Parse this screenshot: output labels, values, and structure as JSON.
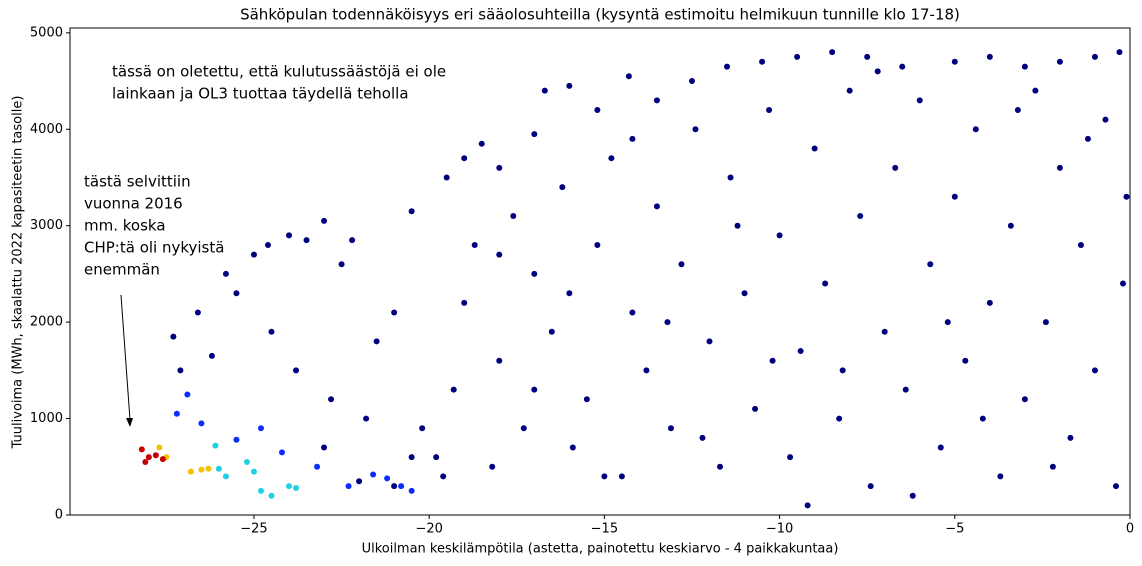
{
  "chart_data": {
    "type": "scatter",
    "title": "Sähköpulan todennäköisyys eri sääolosuhteilla (kysyntä estimoitu helmikuun tunnille klo 17-18)",
    "xlabel": "Ulkoilman keskilämpötila (astetta, painotettu keskiarvo - 4 paikkakuntaa)",
    "ylabel": "Tuulivoima (MWh, skaalattu 2022 kapasiteetin tasolle)",
    "annotations": [
      {
        "lines": [
          "tässä on oletettu, että kulutussäästöjä ei ole",
          "lainkaan ja OL3 tuottaa täydellä teholla"
        ]
      },
      {
        "lines": [
          "tästä selvittiin",
          "vuonna 2016",
          "mm. koska",
          "CHP:tä oli nykyistä",
          "enemmän"
        ]
      }
    ],
    "xlim": [
      -30.25,
      0
    ],
    "ylim": [
      0,
      5050
    ],
    "xticks": [
      {
        "value": -25,
        "label": "−25"
      },
      {
        "value": -20,
        "label": "−20"
      },
      {
        "value": -15,
        "label": "−15"
      },
      {
        "value": -10,
        "label": "−10"
      },
      {
        "value": -5,
        "label": "−5"
      },
      0
    ],
    "yticks": [
      0,
      1000,
      2000,
      3000,
      4000,
      5000
    ],
    "series": [
      {
        "color": "#00007f",
        "x": [
          -27.3,
          -27.1,
          -26.6,
          -26.2,
          -25.8,
          -25.5,
          -25.0,
          -24.6,
          -24.0,
          -23.5,
          -23.0,
          -22.5,
          -22.2,
          -21.0,
          -20.5,
          -24.5,
          -23.8,
          -22.8,
          -21.5,
          -20.2,
          -19.5,
          -19.0,
          -18.5,
          -18.0,
          -17.0,
          -16.7,
          -16.0,
          -15.2,
          -14.3,
          -13.5,
          -12.5,
          -11.5,
          -10.5,
          -9.5,
          -8.5,
          -7.5,
          -6.5,
          -5.0,
          -4.0,
          -3.0,
          -2.0,
          -1.0,
          -0.3,
          -19.8,
          -19.3,
          -19,
          -18.7,
          -18.2,
          -18,
          -17.6,
          -17.3,
          -17,
          -16.5,
          -16.2,
          -15.9,
          -15.5,
          -15.2,
          -14.8,
          -14.5,
          -14.2,
          -13.8,
          -13.5,
          -13.1,
          -12.8,
          -12.4,
          -12,
          -11.7,
          -11.4,
          -11,
          -10.7,
          -10.3,
          -10,
          -9.7,
          -9.4,
          -9,
          -8.7,
          -8.3,
          -8,
          -7.7,
          -7.4,
          -7,
          -6.7,
          -6.4,
          -6,
          -5.7,
          -5.4,
          -5,
          -4.7,
          -4.4,
          -4,
          -3.7,
          -3.4,
          -3,
          -2.7,
          -2.4,
          -2,
          -1.7,
          -1.4,
          -1,
          -0.7,
          -0.4,
          -0.2,
          -0.1,
          -1.2,
          -2.2,
          -3.2,
          -4.2,
          -5.2,
          -6.2,
          -7.2,
          -8.2,
          -9.2,
          -10.2,
          -11.2,
          -12.2,
          -13.2,
          -14.2,
          -15,
          -16,
          -17,
          -18,
          -19.6,
          -20.5,
          -21,
          -22,
          -21.8,
          -23
        ],
        "values": [
          1850,
          1500,
          2100,
          1650,
          2500,
          2300,
          2700,
          2800,
          2900,
          2850,
          3050,
          2600,
          2850,
          2100,
          3150,
          1900,
          1500,
          1200,
          1800,
          900,
          3500,
          3700,
          3850,
          3600,
          3950,
          4400,
          4450,
          4200,
          4550,
          4300,
          4500,
          4650,
          4700,
          4750,
          4800,
          4750,
          4650,
          4700,
          4750,
          4650,
          4700,
          4750,
          4800,
          600,
          1300,
          2200,
          2800,
          500,
          1600,
          3100,
          900,
          2500,
          1900,
          3400,
          700,
          1200,
          2800,
          3700,
          400,
          2100,
          1500,
          3200,
          900,
          2600,
          4000,
          1800,
          500,
          3500,
          2300,
          1100,
          4200,
          2900,
          600,
          1700,
          3800,
          2400,
          1000,
          4400,
          3100,
          300,
          1900,
          3600,
          1300,
          4300,
          2600,
          700,
          3300,
          1600,
          4000,
          2200,
          400,
          3000,
          1200,
          4400,
          2000,
          3600,
          800,
          2800,
          1500,
          4100,
          300,
          2400,
          3300,
          3900,
          500,
          4200,
          1000,
          2000,
          200,
          4600,
          1500,
          100,
          1600,
          3000,
          800,
          2000,
          3900,
          400,
          2300,
          1300,
          2700,
          400,
          600,
          300,
          350,
          1000,
          700
        ]
      },
      {
        "color": "#0a2cff",
        "x": [
          -21.2,
          -20.8,
          -21.6,
          -22.3,
          -20.5,
          -23.2,
          -24.8,
          -25.5,
          -26.5,
          -27.2,
          -26.9,
          -24.2
        ],
        "values": [
          380,
          300,
          420,
          300,
          250,
          500,
          900,
          780,
          950,
          1050,
          1250,
          650
        ]
      },
      {
        "color": "#20d0e0",
        "x": [
          -25.2,
          -24.0,
          -24.5,
          -25.0,
          -26.1,
          -25.8,
          -23.8,
          -26.0,
          -24.8
        ],
        "values": [
          550,
          300,
          200,
          450,
          720,
          400,
          280,
          480,
          250
        ]
      },
      {
        "color": "#f5c000",
        "x": [
          -27.7,
          -26.8,
          -26.3,
          -27.5,
          -26.5
        ],
        "values": [
          700,
          450,
          480,
          600,
          470
        ]
      },
      {
        "color": "#c80000",
        "x": [
          -28.2,
          -28.0,
          -27.8,
          -28.1,
          -27.6
        ],
        "values": [
          680,
          600,
          620,
          550,
          580
        ]
      }
    ]
  }
}
